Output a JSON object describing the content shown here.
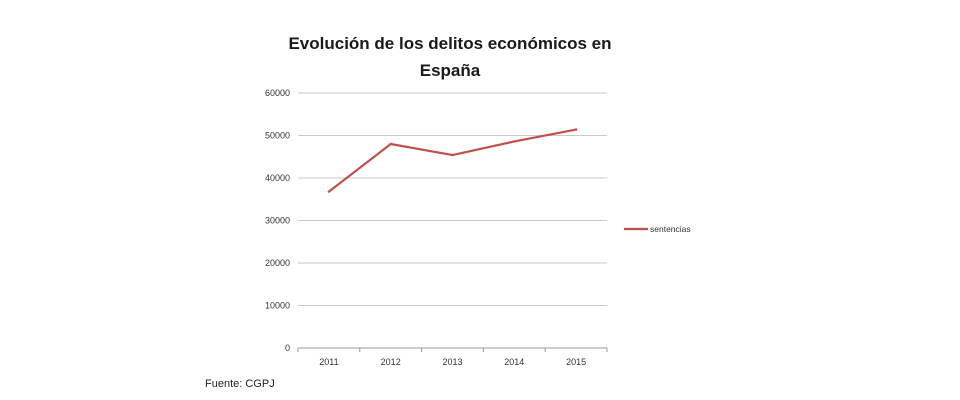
{
  "chart_data": {
    "type": "line",
    "title": [
      "Evolución de los delitos económicos en",
      "España"
    ],
    "categories": [
      "2011",
      "2012",
      "2013",
      "2014",
      "2015"
    ],
    "series": [
      {
        "name": "sentencias",
        "values": [
          36800,
          48000,
          45400,
          48600,
          51400
        ],
        "color": "#c0504d"
      }
    ],
    "ylim": [
      0,
      60000
    ],
    "yticks": [
      "0",
      "10000",
      "20000",
      "30000",
      "40000",
      "50000",
      "60000"
    ],
    "grid": true,
    "legend_position": "right"
  },
  "source": "Fuente: CGPJ"
}
